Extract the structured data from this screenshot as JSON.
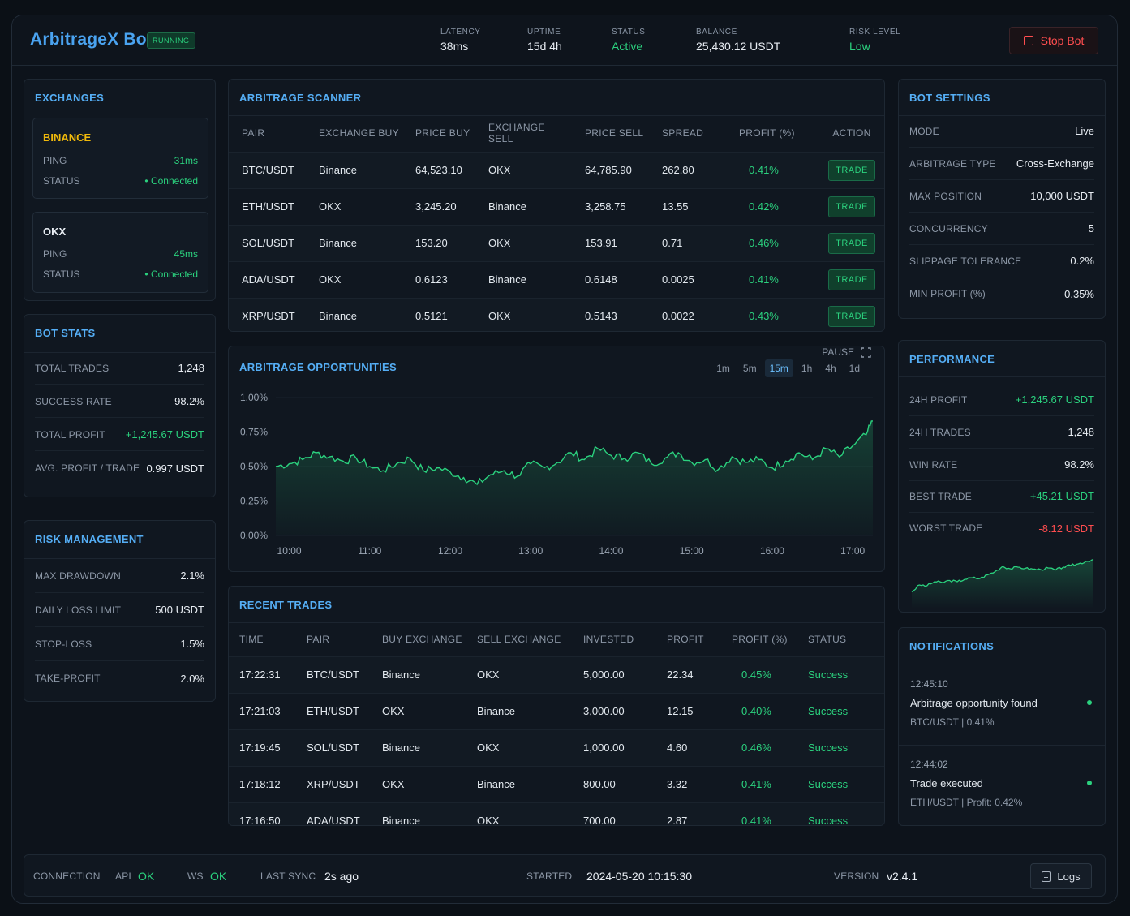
{
  "header": {
    "title": "ArbitrageX Bot",
    "badge": "RUNNING",
    "stats": [
      {
        "label": "LATENCY",
        "value": "38ms"
      },
      {
        "label": "UPTIME",
        "value": "15d 4h"
      },
      {
        "label": "STATUS",
        "value": "Active"
      },
      {
        "label": "BALANCE",
        "value": "25,430.12 USDT"
      },
      {
        "label": "RISK LEVEL",
        "value": "Low"
      }
    ],
    "stop_label": "Stop Bot"
  },
  "exchanges": {
    "title": "EXCHANGES",
    "items": [
      {
        "name": "BINANCE",
        "ping_label": "PING",
        "ping": "31ms",
        "status_label": "STATUS",
        "status": "• Connected"
      },
      {
        "name": "OKX",
        "ping_label": "PING",
        "ping": "45ms",
        "status_label": "STATUS",
        "status": "• Connected"
      }
    ]
  },
  "bot_stats": {
    "title": "BOT STATS",
    "rows": [
      {
        "k": "TOTAL TRADES",
        "v": "1,248"
      },
      {
        "k": "SUCCESS RATE",
        "v": "98.2%"
      },
      {
        "k": "TOTAL PROFIT",
        "v": "+1,245.67 USDT"
      },
      {
        "k": "AVG. PROFIT / TRADE",
        "v": "0.997 USDT"
      }
    ]
  },
  "risk": {
    "title": "RISK MANAGEMENT",
    "rows": [
      {
        "k": "MAX DRAWDOWN",
        "v": "2.1%"
      },
      {
        "k": "DAILY LOSS LIMIT",
        "v": "500 USDT"
      },
      {
        "k": "STOP-LOSS",
        "v": "1.5%"
      },
      {
        "k": "TAKE-PROFIT",
        "v": "2.0%"
      }
    ]
  },
  "scanner": {
    "title": "ARBITRAGE SCANNER",
    "columns": [
      "PAIR",
      "EXCHANGE BUY",
      "PRICE BUY",
      "EXCHANGE SELL",
      "PRICE SELL",
      "SPREAD",
      "PROFIT (%)",
      "ACTION"
    ],
    "rows": [
      {
        "pair": "BTC/USDT",
        "buy": "Binance",
        "pbuy": "64,523.10",
        "sell": "OKX",
        "psell": "64,785.90",
        "spread": "262.80",
        "profit": "0.41%",
        "action": "TRADE"
      },
      {
        "pair": "ETH/USDT",
        "buy": "OKX",
        "pbuy": "3,245.20",
        "sell": "Binance",
        "psell": "3,258.75",
        "spread": "13.55",
        "profit": "0.42%",
        "action": "TRADE"
      },
      {
        "pair": "SOL/USDT",
        "buy": "Binance",
        "pbuy": "153.20",
        "sell": "OKX",
        "psell": "153.91",
        "spread": "0.71",
        "profit": "0.46%",
        "action": "TRADE"
      },
      {
        "pair": "ADA/USDT",
        "buy": "OKX",
        "pbuy": "0.6123",
        "sell": "Binance",
        "psell": "0.6148",
        "spread": "0.0025",
        "profit": "0.41%",
        "action": "TRADE"
      },
      {
        "pair": "XRP/USDT",
        "buy": "Binance",
        "pbuy": "0.5121",
        "sell": "OKX",
        "psell": "0.5143",
        "spread": "0.0022",
        "profit": "0.43%",
        "action": "TRADE"
      }
    ]
  },
  "opportunities": {
    "title": "ARBITRAGE OPPORTUNITIES",
    "pause_label": "PAUSE",
    "timeframes": [
      "1m",
      "5m",
      "15m",
      "1h",
      "4h",
      "1d"
    ],
    "active_timeframe": "15m"
  },
  "chart_data": {
    "type": "area",
    "title": "ARBITRAGE OPPORTUNITIES",
    "xlabel": "",
    "ylabel": "",
    "x_ticks": [
      "10:00",
      "11:00",
      "12:00",
      "13:00",
      "14:00",
      "15:00",
      "16:00",
      "17:00"
    ],
    "y_ticks": [
      "1.00%",
      "0.75%",
      "0.50%",
      "0.25%",
      "0.00%"
    ],
    "ylim": [
      0,
      1.0
    ],
    "xlim": [
      "09:50",
      "17:15"
    ],
    "series": [
      {
        "color": "#2bd17e",
        "x": [
          "09:50",
          "10:00",
          "10:10",
          "10:20",
          "10:30",
          "10:40",
          "10:50",
          "11:00",
          "11:10",
          "11:20",
          "11:30",
          "11:40",
          "11:50",
          "12:00",
          "12:10",
          "12:20",
          "12:30",
          "12:40",
          "12:50",
          "13:00",
          "13:10",
          "13:20",
          "13:30",
          "13:40",
          "13:50",
          "14:00",
          "14:10",
          "14:20",
          "14:30",
          "14:40",
          "14:50",
          "15:00",
          "15:10",
          "15:20",
          "15:30",
          "15:40",
          "15:50",
          "16:00",
          "16:10",
          "16:20",
          "16:30",
          "16:40",
          "16:50",
          "17:00",
          "17:10",
          "17:15"
        ],
        "values": [
          0.5,
          0.52,
          0.55,
          0.6,
          0.57,
          0.54,
          0.56,
          0.5,
          0.47,
          0.52,
          0.56,
          0.47,
          0.49,
          0.46,
          0.42,
          0.37,
          0.44,
          0.47,
          0.43,
          0.52,
          0.49,
          0.53,
          0.6,
          0.55,
          0.63,
          0.58,
          0.56,
          0.6,
          0.52,
          0.56,
          0.6,
          0.53,
          0.55,
          0.48,
          0.57,
          0.53,
          0.55,
          0.49,
          0.54,
          0.6,
          0.55,
          0.63,
          0.57,
          0.65,
          0.73,
          0.83
        ]
      }
    ]
  },
  "recent_trades": {
    "title": "RECENT TRADES",
    "columns": [
      "TIME",
      "PAIR",
      "BUY EXCHANGE",
      "SELL EXCHANGE",
      "INVESTED",
      "PROFIT",
      "PROFIT (%)",
      "STATUS"
    ],
    "rows": [
      {
        "time": "17:22:31",
        "pair": "BTC/USDT",
        "buy": "Binance",
        "sell": "OKX",
        "invested": "5,000.00",
        "profit": "22.34",
        "pct": "0.45%",
        "status": "Success"
      },
      {
        "time": "17:21:03",
        "pair": "ETH/USDT",
        "buy": "OKX",
        "sell": "Binance",
        "invested": "3,000.00",
        "profit": "12.15",
        "pct": "0.40%",
        "status": "Success"
      },
      {
        "time": "17:19:45",
        "pair": "SOL/USDT",
        "buy": "Binance",
        "sell": "OKX",
        "invested": "1,000.00",
        "profit": "4.60",
        "pct": "0.46%",
        "status": "Success"
      },
      {
        "time": "17:18:12",
        "pair": "XRP/USDT",
        "buy": "OKX",
        "sell": "Binance",
        "invested": "800.00",
        "profit": "3.32",
        "pct": "0.41%",
        "status": "Success"
      },
      {
        "time": "17:16:50",
        "pair": "ADA/USDT",
        "buy": "Binance",
        "sell": "OKX",
        "invested": "700.00",
        "profit": "2.87",
        "pct": "0.41%",
        "status": "Success"
      }
    ]
  },
  "bot_settings": {
    "title": "BOT SETTINGS",
    "rows": [
      {
        "k": "MODE",
        "v": "Live"
      },
      {
        "k": "ARBITRAGE TYPE",
        "v": "Cross-Exchange"
      },
      {
        "k": "MAX POSITION",
        "v": "10,000 USDT"
      },
      {
        "k": "CONCURRENCY",
        "v": "5"
      },
      {
        "k": "SLIPPAGE TOLERANCE",
        "v": "0.2%"
      },
      {
        "k": "MIN PROFIT (%)",
        "v": "0.35%"
      }
    ]
  },
  "performance": {
    "title": "PERFORMANCE",
    "rows": [
      {
        "k": "24H PROFIT",
        "v": "+1,245.67 USDT"
      },
      {
        "k": "24H TRADES",
        "v": "1,248"
      },
      {
        "k": "WIN RATE",
        "v": "98.2%"
      },
      {
        "k": "BEST TRADE",
        "v": "+45.21 USDT"
      },
      {
        "k": "WORST TRADE",
        "v": "-8.12 USDT"
      }
    ],
    "sparkline": [
      0.05,
      0.22,
      0.2,
      0.3,
      0.28,
      0.33,
      0.3,
      0.36,
      0.4,
      0.38,
      0.47,
      0.55,
      0.68,
      0.62,
      0.66,
      0.63,
      0.61,
      0.6,
      0.64,
      0.59,
      0.66,
      0.7,
      0.74,
      0.8,
      0.85
    ]
  },
  "notifications": {
    "title": "NOTIFICATIONS",
    "items": [
      {
        "time": "12:45:10",
        "message": "Arbitrage opportunity found",
        "sub": "BTC/USDT | 0.41%"
      },
      {
        "time": "12:44:02",
        "message": "Trade executed",
        "sub": "ETH/USDT | Profit: 0.42%"
      }
    ]
  },
  "footer": {
    "connection_label": "CONNECTION",
    "api_label": "API",
    "api_value": "OK",
    "ws_label": "WS",
    "ws_value": "OK",
    "last_sync_label": "LAST SYNC",
    "last_sync_value": "2s ago",
    "started_label": "STARTED",
    "started_value": "2024-05-20 10:15:30",
    "version_label": "VERSION",
    "version_value": "v2.4.1",
    "logs_label": "Logs"
  },
  "colors": {
    "accent": "#4aa3f0",
    "positive": "#2bd17e",
    "negative": "#ff4d4f",
    "background": "#0d131b"
  }
}
